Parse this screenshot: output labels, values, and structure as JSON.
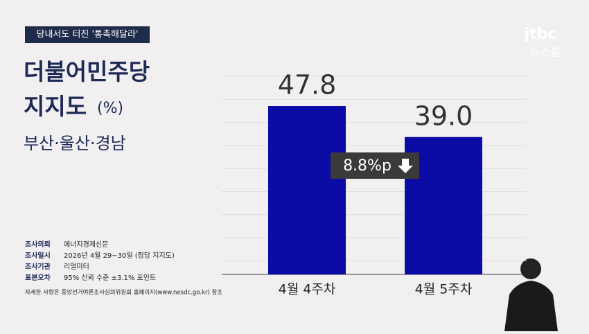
{
  "header": {
    "tag": "당내서도 터진 '통촉해달라'",
    "logo": "jtbc",
    "logo_sub": "뉴스룸"
  },
  "chart_data": {
    "type": "bar",
    "title": "더불어민주당\n지지도",
    "unit": "(%)",
    "subtitle": "부산·울산·경남",
    "categories": [
      "4월 4주차",
      "4월 5주차"
    ],
    "values": [
      47.8,
      39.0
    ],
    "value_labels": [
      "47.8",
      "39.0"
    ],
    "color": "#0b0ba6",
    "ylim": [
      0,
      60
    ],
    "annotation": "8.8%p"
  },
  "footnotes": [
    {
      "label": "조사의뢰",
      "text": "에너지경제신문"
    },
    {
      "label": "조사일시",
      "text": "2026년 4월 29~30일 (정당 지지도)"
    },
    {
      "label": "조사기관",
      "text": "리얼미터"
    },
    {
      "label": "표본오차",
      "text": "95% 신뢰 수준 ±3.1% 포인트"
    }
  ],
  "note": "자세한 사항은 중앙선거여론조사심의위원회 홈페이지(www.nesdc.go.kr) 참조"
}
